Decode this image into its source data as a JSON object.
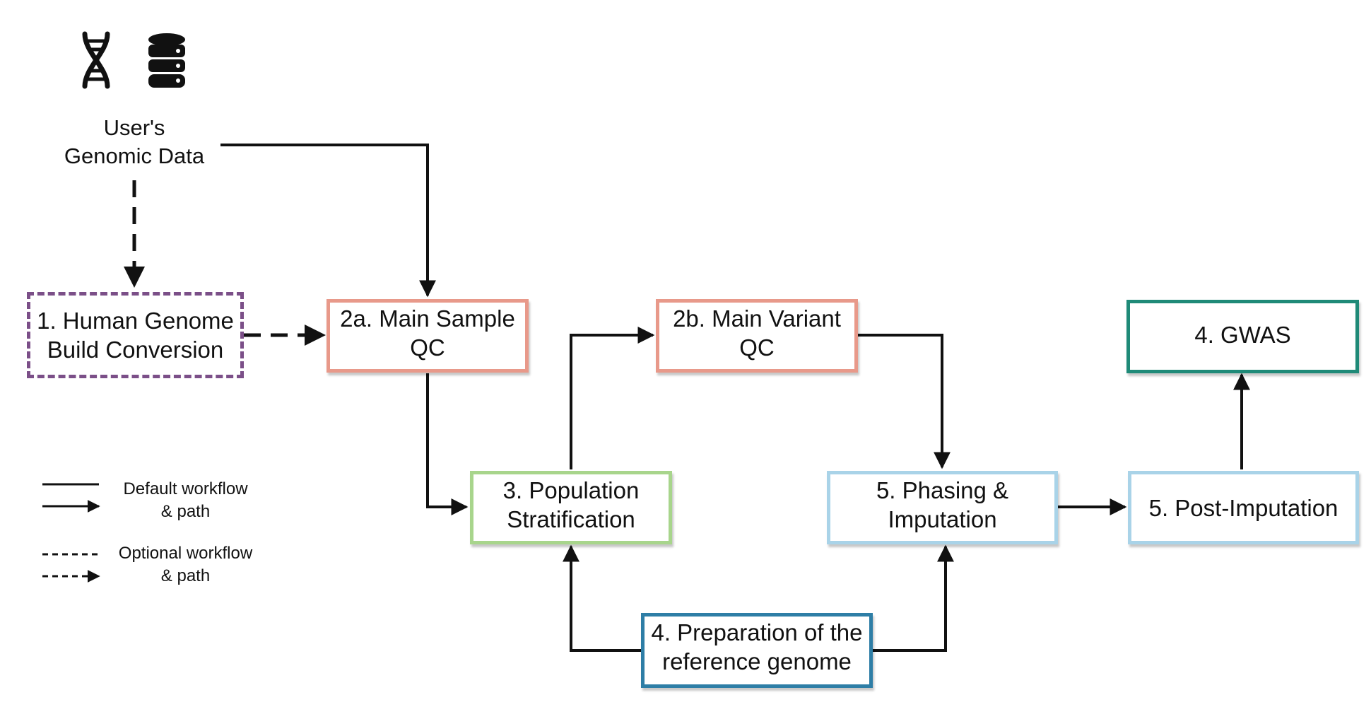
{
  "source": {
    "label_line1": "User's",
    "label_line2": "Genomic Data",
    "icons": [
      "dna-helix-icon",
      "database-icon"
    ]
  },
  "nodes": {
    "build_conversion": {
      "line1": "1. Human Genome",
      "line2": "Build Conversion",
      "color": "#7b4f88"
    },
    "sample_qc": {
      "line1": "2a. Main Sample",
      "line2": "QC",
      "color": "#e8998a"
    },
    "variant_qc": {
      "line1": "2b. Main Variant",
      "line2": "QC",
      "color": "#e8998a"
    },
    "population_stratification": {
      "line1": "3. Population",
      "line2": "Stratification",
      "color": "#a8d58c"
    },
    "reference_prep": {
      "line1": "4. Preparation of the",
      "line2": "reference genome",
      "color": "#2e7ea6"
    },
    "phasing_imputation": {
      "line1": "5. Phasing &",
      "line2": "Imputation",
      "color": "#a9d3e8"
    },
    "post_imputation": {
      "line1": "5. Post-Imputation",
      "color": "#a9d3e8"
    },
    "gwas": {
      "line1": "4. GWAS",
      "color": "#1f8a78"
    }
  },
  "legend": {
    "default_line1": "Default workflow",
    "default_line2": "& path",
    "optional_line1": "Optional workflow",
    "optional_line2": "& path"
  },
  "line_color": "#111111"
}
